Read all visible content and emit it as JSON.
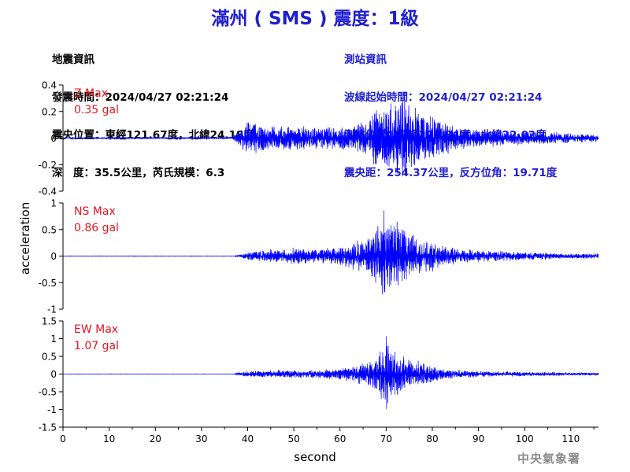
{
  "title": "滿州 ( SMS ) 震度：1級",
  "quake_info": {
    "heading": "地震資訊",
    "time": "發震時間：2024/04/27 02:21:24",
    "epicenter": "震央位置：東經121.67度，北緯24.18度",
    "depth_mag": "深　度：35.5公里，芮氏規模：6.3"
  },
  "station_info": {
    "heading": "測站資訊",
    "start_time": "波線起始時間：2024/04/27 02:21:24",
    "location": "測站位置：東經120.84度，北緯22.02度",
    "distance": "震央距：254.37公里，反方位角：19.71度"
  },
  "credit": "中央氣象署",
  "colors": {
    "trace": "#0000ff",
    "label": "#e8141e",
    "title": "#1f1fd0",
    "axis": "#000000"
  },
  "chart_data": {
    "type": "line",
    "xlabel": "second",
    "ylabel": "acceleration",
    "xlim": [
      0,
      116
    ],
    "x_ticks": [
      0,
      10,
      20,
      30,
      40,
      50,
      60,
      70,
      80,
      90,
      100,
      110
    ],
    "grid": false,
    "legend": "none",
    "panels": [
      {
        "component": "Z",
        "max_label": "Z Max",
        "max_value": "0.35 gal",
        "peak": 0.35,
        "ylim": [
          -0.4,
          0.4
        ],
        "y_ticks": [
          -0.4,
          -0.2,
          0,
          0.2,
          0.4
        ],
        "y_tick_labels": [
          "-0.4",
          "-0.2",
          "0",
          "0.2",
          "0.4"
        ],
        "envelope": {
          "t": [
            0,
            36.5,
            37.5,
            40,
            45,
            50,
            55,
            60,
            63,
            66,
            68,
            69.5,
            71,
            73,
            74,
            76,
            78,
            80,
            82,
            85,
            88,
            92,
            96,
            100,
            105,
            110,
            116
          ],
          "amp": [
            0.004,
            0.008,
            0.04,
            0.14,
            0.1,
            0.1,
            0.09,
            0.09,
            0.12,
            0.17,
            0.24,
            0.27,
            0.3,
            0.33,
            0.35,
            0.26,
            0.2,
            0.2,
            0.15,
            0.1,
            0.08,
            0.07,
            0.06,
            0.06,
            0.05,
            0.04,
            0.03
          ]
        }
      },
      {
        "component": "NS",
        "max_label": "NS Max",
        "max_value": "0.86 gal",
        "peak": 0.86,
        "ylim": [
          -1,
          1
        ],
        "y_ticks": [
          -1,
          -0.5,
          0,
          0.5,
          1
        ],
        "y_tick_labels": [
          "-1",
          "-0.5",
          "0",
          "0.5",
          "1"
        ],
        "envelope": {
          "t": [
            0,
            37,
            38,
            41,
            45,
            50,
            55,
            60,
            65,
            67,
            68.5,
            69.5,
            70.5,
            72,
            74,
            76,
            78,
            80,
            83,
            86,
            90,
            95,
            100,
            105,
            110,
            116
          ],
          "amp": [
            0.004,
            0.004,
            0.03,
            0.1,
            0.14,
            0.16,
            0.15,
            0.18,
            0.35,
            0.45,
            0.62,
            0.86,
            0.75,
            0.68,
            0.55,
            0.45,
            0.35,
            0.3,
            0.2,
            0.15,
            0.12,
            0.1,
            0.08,
            0.07,
            0.06,
            0.05
          ]
        }
      },
      {
        "component": "EW",
        "max_label": "EW Max",
        "max_value": "1.07 gal",
        "peak": 1.07,
        "ylim": [
          -1.5,
          1.5
        ],
        "y_ticks": [
          -1.5,
          -1,
          -0.5,
          0,
          0.5,
          1,
          1.5
        ],
        "y_tick_labels": [
          "-1.5",
          "-1",
          "-0.5",
          "0",
          "0.5",
          "1",
          "1.5"
        ],
        "envelope": {
          "t": [
            0,
            37,
            38,
            40,
            45,
            50,
            55,
            60,
            64,
            67,
            68.5,
            70,
            71.5,
            73,
            75,
            78,
            80,
            83,
            86,
            90,
            95,
            100,
            105,
            110,
            116
          ],
          "amp": [
            0.004,
            0.004,
            0.05,
            0.08,
            0.12,
            0.12,
            0.12,
            0.18,
            0.3,
            0.45,
            0.7,
            1.07,
            0.75,
            0.55,
            0.45,
            0.35,
            0.25,
            0.15,
            0.12,
            0.1,
            0.08,
            0.07,
            0.06,
            0.05,
            0.04
          ]
        }
      }
    ]
  }
}
